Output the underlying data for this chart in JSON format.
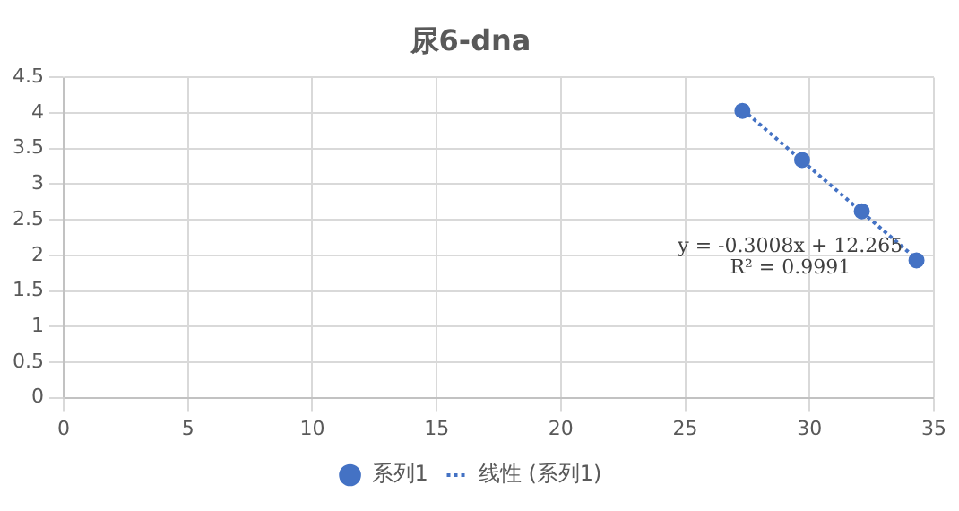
{
  "chart_data": {
    "type": "scatter",
    "title": "尿6-dna",
    "x": [
      27.3,
      29.7,
      32.1,
      34.3
    ],
    "series": [
      {
        "name": "系列1",
        "color": "#4472c4",
        "values": [
          4.03,
          3.34,
          2.62,
          1.93
        ],
        "marker": "circle"
      },
      {
        "name": "线性 (系列1)",
        "type": "line",
        "color": "#4472c4",
        "x": [
          27.3,
          34.3
        ],
        "values": [
          4.05,
          1.95
        ],
        "line_style": "dotted",
        "marker": "none"
      }
    ],
    "xlim": [
      0,
      35
    ],
    "xticks": [
      0,
      5,
      10,
      15,
      20,
      25,
      30,
      35
    ],
    "ylim": [
      0,
      4.5
    ],
    "yticks": [
      0,
      0.5,
      1,
      1.5,
      2,
      2.5,
      3,
      3.5,
      4,
      4.5
    ],
    "grid": true,
    "legend": "bottom",
    "annotations": [
      "y = -0.3008x + 12.265",
      "R² = 0.9991"
    ]
  }
}
